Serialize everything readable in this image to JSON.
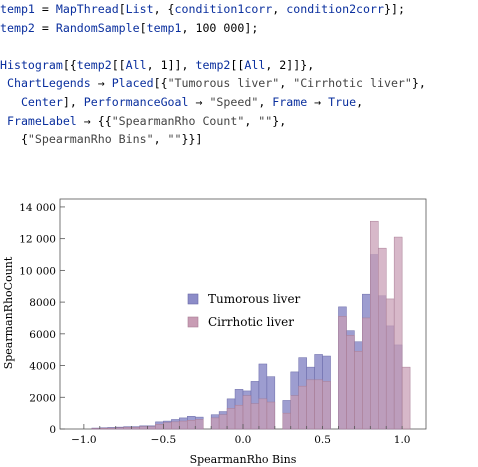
{
  "code_lines": [
    [
      [
        "sym",
        "temp1"
      ],
      [
        "plain",
        " = "
      ],
      [
        "kw",
        "MapThread"
      ],
      [
        "plain",
        "["
      ],
      [
        "kw",
        "List"
      ],
      [
        "plain",
        ", {"
      ],
      [
        "sym",
        "condition1corr"
      ],
      [
        "plain",
        ", "
      ],
      [
        "sym",
        "condition2corr"
      ],
      [
        "plain",
        "}];"
      ]
    ],
    [
      [
        "sym",
        "temp2"
      ],
      [
        "plain",
        " = "
      ],
      [
        "kw",
        "RandomSample"
      ],
      [
        "plain",
        "["
      ],
      [
        "sym",
        "temp1"
      ],
      [
        "plain",
        ", 100 000];"
      ]
    ],
    [],
    [
      [
        "kw",
        "Histogram"
      ],
      [
        "plain",
        "[{"
      ],
      [
        "sym",
        "temp2"
      ],
      [
        "plain",
        "[["
      ],
      [
        "kw",
        "All"
      ],
      [
        "plain",
        ", 1]], "
      ],
      [
        "sym",
        "temp2"
      ],
      [
        "plain",
        "[["
      ],
      [
        "kw",
        "All"
      ],
      [
        "plain",
        ", 2]]},"
      ]
    ],
    [
      [
        "plain",
        " "
      ],
      [
        "kw",
        "ChartLegends"
      ],
      [
        "plain",
        " → "
      ],
      [
        "kw",
        "Placed"
      ],
      [
        "plain",
        "[{"
      ],
      [
        "str",
        "\"Tumorous liver\""
      ],
      [
        "plain",
        ", "
      ],
      [
        "str",
        "\"Cirrhotic liver\""
      ],
      [
        "plain",
        "},"
      ]
    ],
    [
      [
        "plain",
        "   "
      ],
      [
        "kw",
        "Center"
      ],
      [
        "plain",
        "], "
      ],
      [
        "kw",
        "PerformanceGoal"
      ],
      [
        "plain",
        " → "
      ],
      [
        "str",
        "\"Speed\""
      ],
      [
        "plain",
        ", "
      ],
      [
        "kw",
        "Frame"
      ],
      [
        "plain",
        " → "
      ],
      [
        "kw",
        "True"
      ],
      [
        "plain",
        ","
      ]
    ],
    [
      [
        "plain",
        " "
      ],
      [
        "kw",
        "FrameLabel"
      ],
      [
        "plain",
        " → {{"
      ],
      [
        "str",
        "\"SpearmanRho Count\""
      ],
      [
        "plain",
        ", "
      ],
      [
        "str",
        "\"\""
      ],
      [
        "plain",
        "},"
      ]
    ],
    [
      [
        "plain",
        "   {"
      ],
      [
        "str",
        "\"SpearmanRho Bins\""
      ],
      [
        "plain",
        ", "
      ],
      [
        "str",
        "\"\""
      ],
      [
        "plain",
        "}}]"
      ]
    ]
  ],
  "chart_data": {
    "type": "bar",
    "xlabel": "SpearmanRho Bins",
    "ylabel": "SpearmanRhoCount",
    "xlim": [
      -1.15,
      1.15
    ],
    "ylim": [
      0,
      14500
    ],
    "xticks": [
      -1.0,
      -0.5,
      0.0,
      0.5,
      1.0
    ],
    "xtick_labels": [
      "−1.0",
      "−0.5",
      "0.0",
      "0.5",
      "1.0"
    ],
    "yticks": [
      0,
      2000,
      4000,
      6000,
      8000,
      10000,
      12000,
      14000
    ],
    "ytick_labels": [
      "0",
      "2000",
      "4000",
      "6000",
      "8000",
      "10 000",
      "12 000",
      "14 000"
    ],
    "bin_width": 0.05,
    "bin_starts": [
      -1.0,
      -0.95,
      -0.9,
      -0.85,
      -0.8,
      -0.75,
      -0.7,
      -0.65,
      -0.6,
      -0.55,
      -0.5,
      -0.45,
      -0.4,
      -0.35,
      -0.3,
      -0.25,
      -0.2,
      -0.15,
      -0.1,
      -0.05,
      0.0,
      0.05,
      0.1,
      0.15,
      0.2,
      0.25,
      0.3,
      0.35,
      0.4,
      0.45,
      0.5,
      0.55,
      0.6,
      0.65,
      0.7,
      0.75,
      0.8,
      0.85,
      0.9,
      0.95,
      1.0
    ],
    "series": [
      {
        "name": "Tumorous liver",
        "color": "#8c8cc8",
        "values": [
          0,
          60,
          80,
          100,
          120,
          150,
          150,
          200,
          200,
          450,
          500,
          600,
          700,
          800,
          750,
          0,
          900,
          1100,
          1900,
          2500,
          2400,
          3000,
          4100,
          3300,
          0,
          1800,
          3600,
          4500,
          3900,
          4700,
          4600,
          0,
          7700,
          6200,
          5500,
          8500,
          11000,
          8400,
          6500,
          5300,
          0
        ]
      },
      {
        "name": "Cirrhotic liver",
        "color": "#c89cb4",
        "values": [
          0,
          30,
          50,
          60,
          80,
          100,
          100,
          150,
          150,
          300,
          400,
          450,
          500,
          550,
          600,
          0,
          700,
          900,
          1300,
          1500,
          2100,
          1600,
          1900,
          1700,
          0,
          1000,
          2100,
          2700,
          3100,
          3100,
          3000,
          0,
          7100,
          5900,
          4900,
          7000,
          13100,
          11400,
          8200,
          12100,
          3900
        ]
      }
    ],
    "legend_entries": [
      "Tumorous liver",
      "Cirrhotic liver"
    ],
    "legend_placement": "center"
  }
}
